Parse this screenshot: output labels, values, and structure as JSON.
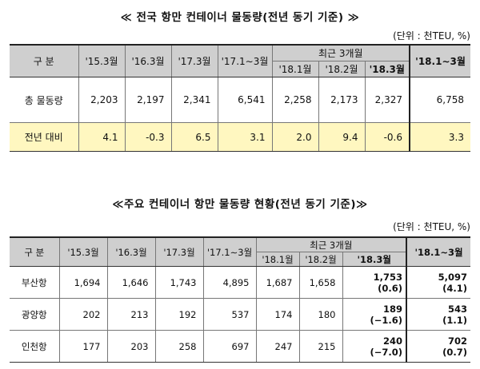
{
  "table1": {
    "title": "≪ 전국 항만 컨테이너 물동량(전년 동기 기준) ≫",
    "unit": "(단위 : 천TEU, %)",
    "headers": {
      "label": "구 분",
      "c1": "'15.3월",
      "c2": "'16.3월",
      "c3": "'17.3월",
      "c4": "'17.1∼3월",
      "recent": "최근 3개월",
      "r1": "'18.1월",
      "r2": "'18.2월",
      "r3": "'18.3월",
      "c8": "'18.1∼3월"
    },
    "rows": [
      {
        "label": "총 물동량",
        "values": [
          "2,203",
          "2,197",
          "2,341",
          "6,541",
          "2,258",
          "2,173",
          "2,327",
          "6,758"
        ]
      },
      {
        "label": "전년 대비",
        "values": [
          "4.1",
          "-0.3",
          "6.5",
          "3.1",
          "2.0",
          "9.4",
          "-0.6",
          "3.3"
        ]
      }
    ]
  },
  "table2": {
    "title": "≪주요 컨테이너 항만 물동량 현황(전년 동기 기준)≫",
    "unit": "(단위 : 천TEU, %)",
    "headers": {
      "label": "구 분",
      "c1": "'15.3월",
      "c2": "'16.3월",
      "c3": "'17.3월",
      "c4": "'17.1∼3월",
      "recent": "최근 3개월",
      "r1": "'18.1월",
      "r2": "'18.2월",
      "r3": "'18.3월",
      "c8": "'18.1∼3월"
    },
    "rows": [
      {
        "label": "부산항",
        "values": [
          "1,694",
          "1,646",
          "1,743",
          "4,895",
          "1,687",
          "1,658"
        ],
        "m3": "1,753",
        "m3pct": "(0.6)",
        "total": "5,097",
        "totalpct": "(4.1)"
      },
      {
        "label": "광양항",
        "values": [
          "202",
          "213",
          "192",
          "537",
          "174",
          "180"
        ],
        "m3": "189",
        "m3pct": "(−1.6)",
        "total": "543",
        "totalpct": "(1.1)"
      },
      {
        "label": "인천항",
        "values": [
          "177",
          "203",
          "258",
          "697",
          "247",
          "215"
        ],
        "m3": "240",
        "m3pct": "(−7.0)",
        "total": "702",
        "totalpct": "(0.7)"
      }
    ]
  }
}
